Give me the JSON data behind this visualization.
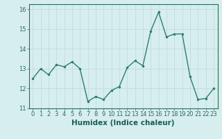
{
  "x": [
    0,
    1,
    2,
    3,
    4,
    5,
    6,
    7,
    8,
    9,
    10,
    11,
    12,
    13,
    14,
    15,
    16,
    17,
    18,
    19,
    20,
    21,
    22,
    23
  ],
  "y": [
    12.5,
    13.0,
    12.7,
    13.2,
    13.1,
    13.35,
    13.0,
    11.35,
    11.6,
    11.45,
    11.9,
    12.1,
    13.05,
    13.4,
    13.15,
    14.9,
    15.85,
    14.6,
    14.75,
    14.75,
    12.6,
    11.45,
    11.5,
    12.0
  ],
  "line_color": "#2e7d6b",
  "marker": ".",
  "markersize": 3,
  "linewidth": 1.0,
  "xlabel": "Humidex (Indice chaleur)",
  "xlim": [
    -0.5,
    23.5
  ],
  "ylim": [
    11.0,
    16.25
  ],
  "yticks": [
    11,
    12,
    13,
    14,
    15,
    16
  ],
  "xticks": [
    0,
    1,
    2,
    3,
    4,
    5,
    6,
    7,
    8,
    9,
    10,
    11,
    12,
    13,
    14,
    15,
    16,
    17,
    18,
    19,
    20,
    21,
    22,
    23
  ],
  "xtick_labels": [
    "0",
    "1",
    "2",
    "3",
    "4",
    "5",
    "6",
    "7",
    "8",
    "9",
    "10",
    "11",
    "12",
    "13",
    "14",
    "15",
    "16",
    "17",
    "18",
    "19",
    "20",
    "21",
    "22",
    "23"
  ],
  "background_color": "#d6eeee",
  "grid_color": "#c0d8d8",
  "line_dark": "#2e6b5e",
  "tick_color": "#2e6b5e",
  "label_color": "#1a5c50",
  "xlabel_fontsize": 7.5,
  "tick_fontsize": 6.0
}
